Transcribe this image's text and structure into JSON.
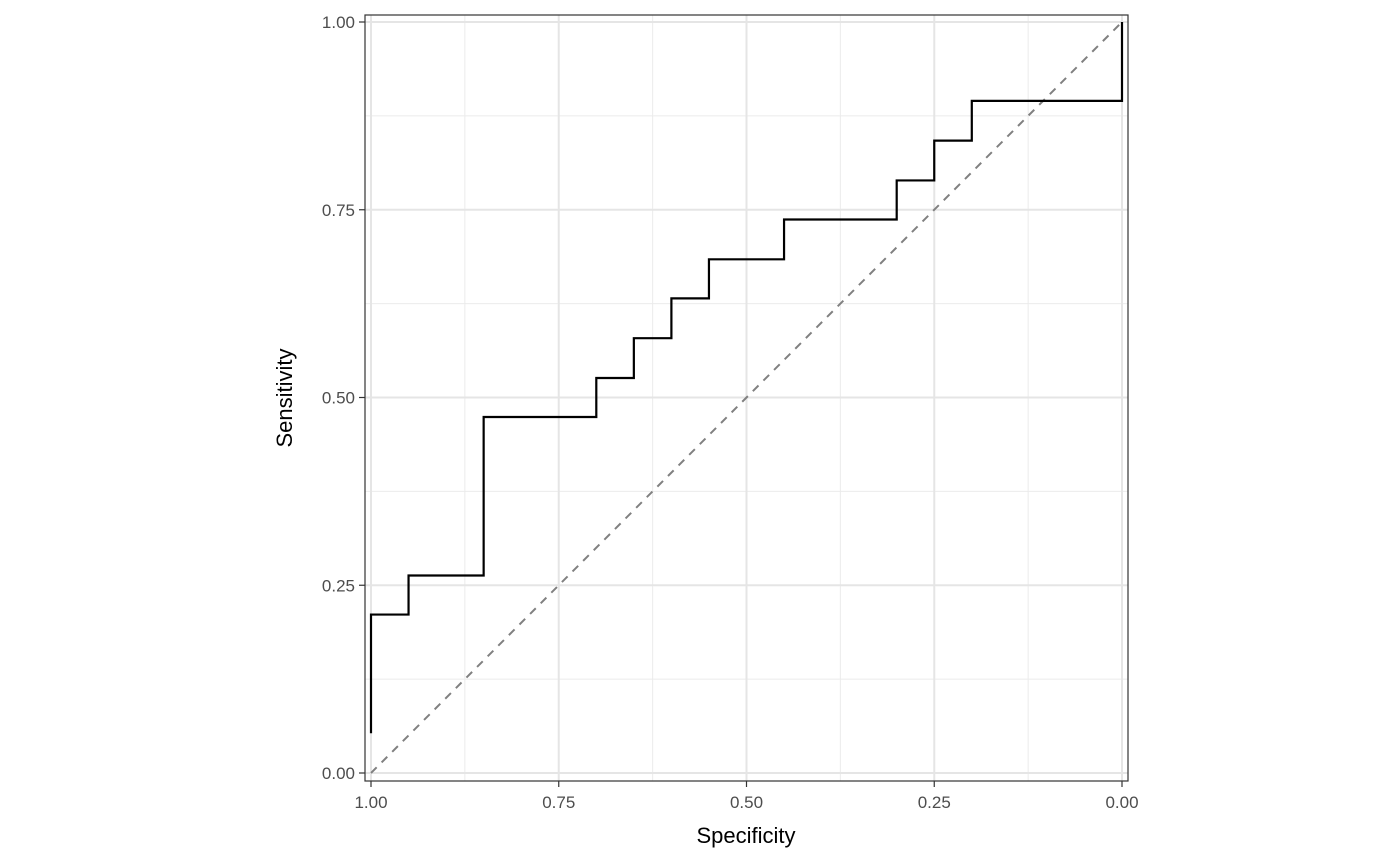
{
  "chart_data": {
    "type": "line",
    "title": "",
    "xlabel": "Specificity",
    "ylabel": "Sensitivity",
    "x_reversed": true,
    "xlim": [
      1.0,
      0.0
    ],
    "ylim": [
      0.0,
      1.0
    ],
    "x_ticks": [
      "1.00",
      "0.75",
      "0.50",
      "0.25",
      "0.00"
    ],
    "x_tick_values": [
      1.0,
      0.75,
      0.5,
      0.25,
      0.0
    ],
    "y_ticks": [
      "0.00",
      "0.25",
      "0.50",
      "0.75",
      "1.00"
    ],
    "y_tick_values": [
      0.0,
      0.25,
      0.5,
      0.75,
      1.0
    ],
    "grid": true,
    "legend": "none",
    "series": [
      {
        "line_color": "#000000",
        "points": [
          [
            1.0,
            0.053
          ],
          [
            1.0,
            0.211
          ],
          [
            0.95,
            0.211
          ],
          [
            0.95,
            0.263
          ],
          [
            0.85,
            0.263
          ],
          [
            0.85,
            0.474
          ],
          [
            0.7,
            0.474
          ],
          [
            0.7,
            0.526
          ],
          [
            0.65,
            0.526
          ],
          [
            0.65,
            0.579
          ],
          [
            0.6,
            0.579
          ],
          [
            0.6,
            0.632
          ],
          [
            0.55,
            0.632
          ],
          [
            0.55,
            0.684
          ],
          [
            0.45,
            0.684
          ],
          [
            0.45,
            0.737
          ],
          [
            0.3,
            0.737
          ],
          [
            0.3,
            0.789
          ],
          [
            0.25,
            0.789
          ],
          [
            0.25,
            0.842
          ],
          [
            0.2,
            0.842
          ],
          [
            0.2,
            0.895
          ],
          [
            0.0,
            0.895
          ],
          [
            0.0,
            1.0
          ]
        ]
      }
    ],
    "reference_line": {
      "from": [
        1.0,
        0.0
      ],
      "to": [
        0.0,
        1.0
      ],
      "style": "dashed",
      "color": "#808080"
    }
  }
}
